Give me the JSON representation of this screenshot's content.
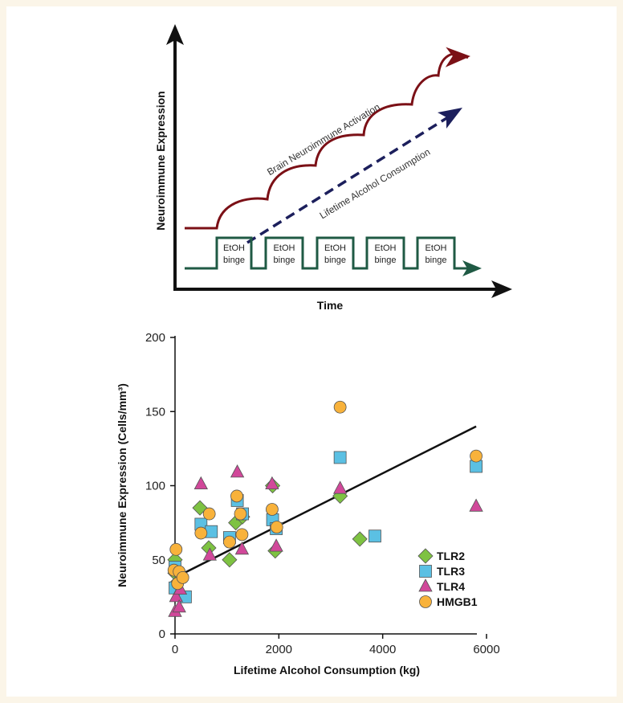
{
  "concept_panel": {
    "y_axis_label": "Neuroimmune Expression",
    "x_axis_label": "Time",
    "activation_label": "Brain Neuroimmune Activation",
    "consumption_label": "Lifetime Alcohol Consumption",
    "binge_labels": [
      [
        "EtOH",
        "binge"
      ],
      [
        "EtOH",
        "binge"
      ],
      [
        "EtOH",
        "binge"
      ],
      [
        "EtOH",
        "binge"
      ],
      [
        "EtOH",
        "binge"
      ]
    ],
    "colors": {
      "activation": "#7b1016",
      "consumption": "#1c1f5c",
      "binge": "#1f5a44",
      "axis": "#111111"
    }
  },
  "chart_data": {
    "type": "scatter",
    "xlabel": "Lifetime Alcohol Consumption (kg)",
    "ylabel": "Neuroimmune Expression (Cells/mm³)",
    "xlim": [
      0,
      6000
    ],
    "ylim": [
      0,
      200
    ],
    "xticks": [
      0,
      2000,
      4000,
      6000
    ],
    "yticks": [
      0,
      50,
      100,
      150,
      200
    ],
    "xtick_labels": [
      "0",
      "2000",
      "4000",
      "6000"
    ],
    "ytick_labels": [
      "0",
      "50",
      "100",
      "150",
      "200"
    ],
    "legend_position": "inside-right",
    "trendline": [
      [
        0,
        38
      ],
      [
        5800,
        140
      ]
    ],
    "series": [
      {
        "name": "TLR2",
        "marker": "diamond",
        "color": "#7ec242",
        "points": [
          [
            0,
            50
          ],
          [
            0,
            41
          ],
          [
            50,
            35
          ],
          [
            480,
            85
          ],
          [
            650,
            58
          ],
          [
            1050,
            50
          ],
          [
            1170,
            75
          ],
          [
            1300,
            79
          ],
          [
            1880,
            100
          ],
          [
            1930,
            56
          ],
          [
            3180,
            93
          ],
          [
            3560,
            64
          ]
        ]
      },
      {
        "name": "TLR3",
        "marker": "square",
        "color": "#5bc0e3",
        "points": [
          [
            0,
            45
          ],
          [
            0,
            31
          ],
          [
            200,
            25
          ],
          [
            500,
            74
          ],
          [
            700,
            69
          ],
          [
            1050,
            65
          ],
          [
            1200,
            90
          ],
          [
            1300,
            81
          ],
          [
            1880,
            77
          ],
          [
            1950,
            71
          ],
          [
            3180,
            119
          ],
          [
            3850,
            66
          ],
          [
            5800,
            113
          ]
        ]
      },
      {
        "name": "TLR4",
        "marker": "triangle",
        "color": "#d1489a",
        "points": [
          [
            0,
            15
          ],
          [
            20,
            25
          ],
          [
            80,
            18
          ],
          [
            100,
            30
          ],
          [
            500,
            101
          ],
          [
            670,
            53
          ],
          [
            1200,
            109
          ],
          [
            1290,
            57
          ],
          [
            1870,
            101
          ],
          [
            1950,
            59
          ],
          [
            3180,
            98
          ],
          [
            5800,
            86
          ]
        ]
      },
      {
        "name": "HMGB1",
        "marker": "circle",
        "color": "#f8b23b",
        "points": [
          [
            -20,
            43
          ],
          [
            20,
            57
          ],
          [
            50,
            34
          ],
          [
            80,
            42
          ],
          [
            150,
            38
          ],
          [
            500,
            68
          ],
          [
            660,
            81
          ],
          [
            1050,
            62
          ],
          [
            1190,
            93
          ],
          [
            1260,
            81
          ],
          [
            1290,
            67
          ],
          [
            1870,
            84
          ],
          [
            1960,
            72
          ],
          [
            3180,
            153
          ],
          [
            5800,
            120
          ]
        ]
      }
    ]
  }
}
